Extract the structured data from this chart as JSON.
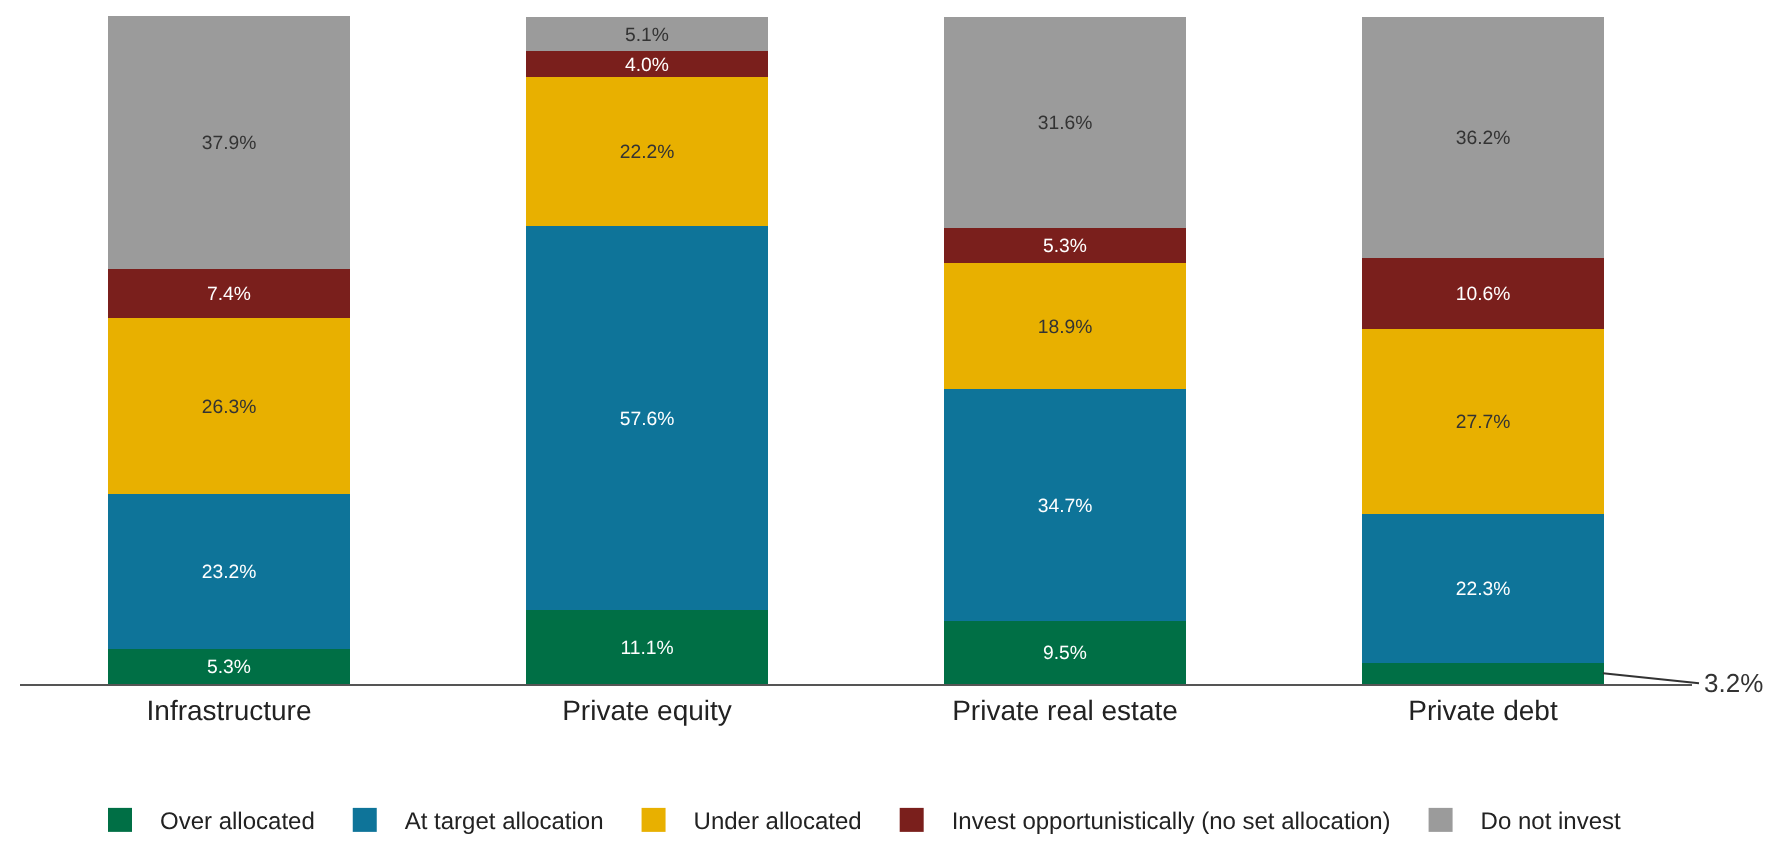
{
  "chart_data": {
    "type": "bar",
    "stacked": true,
    "categories": [
      "Infrastructure",
      "Private equity",
      "Private real estate",
      "Private debt"
    ],
    "series": [
      {
        "name": "Over allocated",
        "color": "#006f45",
        "values": [
          5.3,
          11.1,
          9.5,
          3.2
        ],
        "value_labels": [
          "5.3%",
          "11.1%",
          "9.5%",
          "3.2%"
        ]
      },
      {
        "name": "At target allocation",
        "color": "#0e7499",
        "values": [
          23.2,
          57.6,
          34.7,
          22.3
        ],
        "value_labels": [
          "23.2%",
          "57.6%",
          "34.7%",
          "22.3%"
        ]
      },
      {
        "name": "Under allocated",
        "color": "#e8b000",
        "values": [
          26.3,
          22.2,
          18.9,
          27.7
        ],
        "value_labels": [
          "26.3%",
          "22.2%",
          "18.9%",
          "27.7%"
        ]
      },
      {
        "name": "Invest opportunistically (no set allocation)",
        "color": "#7a1f1c",
        "values": [
          7.4,
          4.0,
          5.3,
          10.6
        ],
        "value_labels": [
          "7.4%",
          "4.0%",
          "5.3%",
          "10.6%"
        ]
      },
      {
        "name": "Do not invest",
        "color": "#9b9b9b",
        "values": [
          37.9,
          5.1,
          31.6,
          36.2
        ],
        "value_labels": [
          "37.9%",
          "5.1%",
          "31.6%",
          "36.2%"
        ]
      }
    ],
    "legend": "bottom"
  }
}
